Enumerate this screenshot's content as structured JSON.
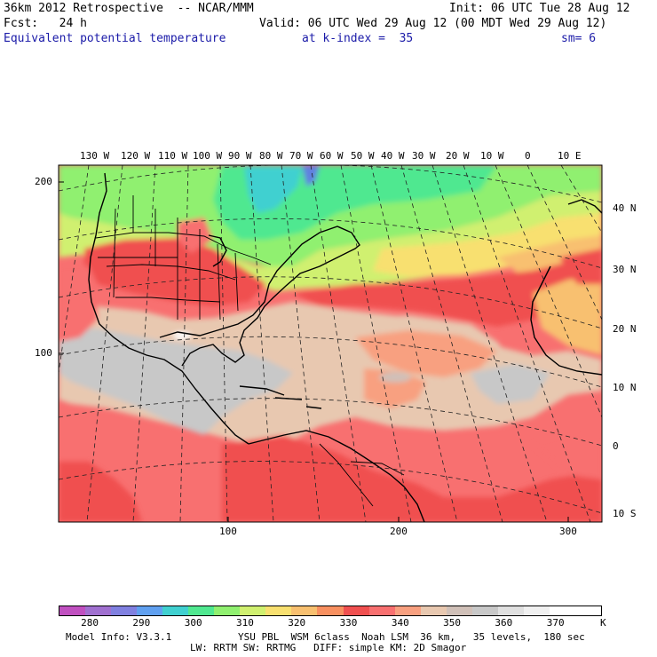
{
  "header": {
    "model_line": "36km 2012 Retrospective  -- NCAR/MMM",
    "init_line": "Init: 06 UTC Tue 28 Aug 12",
    "fcst_line": "Fcst:   24 h",
    "valid_line": "Valid: 06 UTC Wed 29 Aug 12 (00 MDT Wed 29 Aug 12)",
    "field_name": "Equivalent potential temperature",
    "level": "at k-index =  35",
    "smoothing": "sm= 6"
  },
  "map": {
    "lon_labels": [
      "130 W",
      "120 W",
      "110 W",
      "100 W",
      "90 W",
      "80 W",
      "70 W",
      "60 W",
      "50 W",
      "40 W",
      "30 W",
      "20 W",
      "10 W",
      "0",
      "10 E"
    ],
    "lat_labels": [
      "40 N",
      "30 N",
      "20 N",
      "10 N",
      "0",
      "10 S"
    ],
    "y_grid_labels": [
      "200",
      "100"
    ],
    "x_grid_labels": [
      "100",
      "200",
      "300"
    ]
  },
  "colorbar": {
    "colors": [
      "#c050c0",
      "#a070d0",
      "#8080e0",
      "#60a0f0",
      "#40d0d0",
      "#50e890",
      "#90f070",
      "#d0f070",
      "#f8e070",
      "#f8c070",
      "#f89060",
      "#f05050",
      "#f87070",
      "#f8a080",
      "#e8c8b0",
      "#d0c0b8",
      "#c8c8c8",
      "#e0e0e0",
      "#f0f0f0",
      "#ffffff",
      "#ffffff"
    ],
    "tick_labels": [
      "280",
      "290",
      "300",
      "310",
      "320",
      "330",
      "340",
      "350",
      "360",
      "370"
    ],
    "unit": "K"
  },
  "footer": {
    "model_info": "Model Info: V3.3.1",
    "physics_1": "YSU PBL  WSM 6class  Noah LSM  36 km,   35 levels,  180 sec",
    "physics_2": "LW: RRTM SW: RRTMG   DIFF: simple KM: 2D Smagor"
  }
}
